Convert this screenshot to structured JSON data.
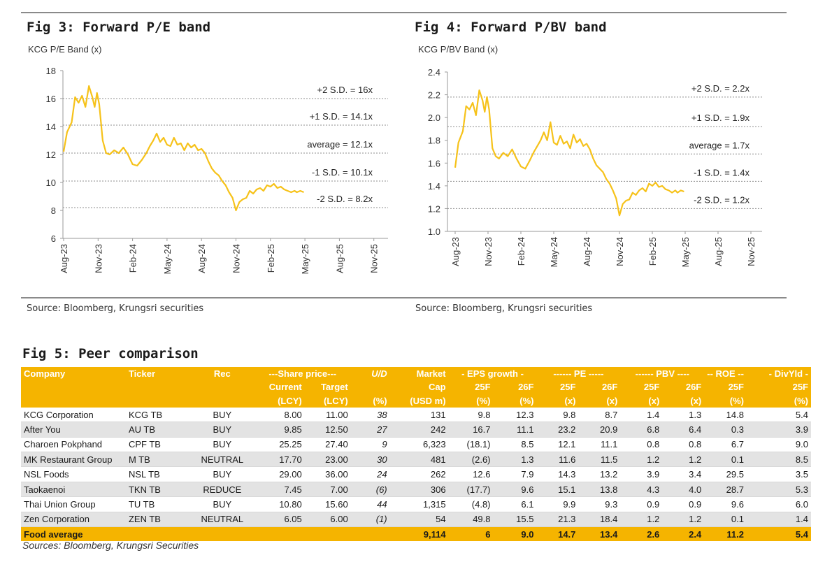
{
  "fig3": {
    "title": "Fig 3: Forward P/E band",
    "subtitle": "KCG P/E  Band (x)",
    "source": "Source: Bloomberg, Krungsri securities"
  },
  "fig4": {
    "title": "Fig 4: Forward P/BV band",
    "subtitle": "KCG P/BV Band (x)",
    "source": "Source: Bloomberg, Krungsri securities"
  },
  "fig5": {
    "title": "Fig 5: Peer comparison",
    "footnote": "Sources: Bloomberg, Krungsri Securities"
  },
  "colors": {
    "accent": "#f5b400",
    "line": "#f6c21a",
    "band": "#8c8c8c"
  },
  "chart_data": [
    {
      "type": "line",
      "title": "Fig 3: Forward P/E band",
      "ylabel": "KCG P/E  Band (x)",
      "ylim": [
        6,
        18
      ],
      "yticks": [
        6,
        8,
        10,
        12,
        14,
        16,
        18
      ],
      "x_ticks": [
        "Aug-23",
        "Nov-23",
        "Feb-24",
        "May-24",
        "Aug-24",
        "Nov-24",
        "Feb-25",
        "May-25",
        "Aug-25",
        "Nov-25"
      ],
      "x_range_months": [
        0,
        27
      ],
      "series": [
        {
          "name": "KCG P/E",
          "x": [
            0,
            0.3,
            0.7,
            1.0,
            1.3,
            1.6,
            1.9,
            2.2,
            2.5,
            2.7,
            2.9,
            3.1,
            3.4,
            3.7,
            4.0,
            4.4,
            4.8,
            5.2,
            5.6,
            6.0,
            6.4,
            6.8,
            7.2,
            7.5,
            7.8,
            8.1,
            8.4,
            8.7,
            9.0,
            9.3,
            9.6,
            9.9,
            10.2,
            10.5,
            10.8,
            11.1,
            11.4,
            11.7,
            12.0,
            12.3,
            12.6,
            12.9,
            13.2,
            13.5,
            13.8,
            14.1,
            14.4,
            14.7,
            15.0,
            15.3,
            15.6,
            15.9,
            16.2,
            16.5,
            16.8,
            17.1,
            17.4,
            17.7,
            18.0,
            18.3,
            18.6,
            18.9,
            19.2,
            19.5,
            19.8,
            20.1,
            20.3,
            20.6,
            20.9
          ],
          "values": [
            12.2,
            13.6,
            14.3,
            16.1,
            15.7,
            16.2,
            15.4,
            16.9,
            16.1,
            15.4,
            16.4,
            15.6,
            13.0,
            12.1,
            12.0,
            12.3,
            12.1,
            12.5,
            12.0,
            11.3,
            11.2,
            11.6,
            12.1,
            12.6,
            13.0,
            13.5,
            12.9,
            13.2,
            12.7,
            12.6,
            13.2,
            12.7,
            12.8,
            12.3,
            12.8,
            12.5,
            12.7,
            12.3,
            12.4,
            12.1,
            11.5,
            11.0,
            10.7,
            10.5,
            10.1,
            9.8,
            9.3,
            8.9,
            8.0,
            8.6,
            8.8,
            8.9,
            9.4,
            9.2,
            9.5,
            9.6,
            9.4,
            9.8,
            9.7,
            9.9,
            9.6,
            9.7,
            9.5,
            9.4,
            9.3,
            9.4,
            9.3,
            9.4,
            9.3
          ]
        }
      ],
      "bands": [
        {
          "label": "+2 S.D. = 16x",
          "value": 16.0
        },
        {
          "label": "+1 S.D. = 14.1x",
          "value": 14.1
        },
        {
          "label": "average = 12.1x",
          "value": 12.1
        },
        {
          "label": "-1 S.D. = 10.1x",
          "value": 10.1
        },
        {
          "label": "-2 S.D. = 8.2x",
          "value": 8.2
        }
      ]
    },
    {
      "type": "line",
      "title": "Fig 4: Forward P/BV band",
      "ylabel": "KCG P/BV Band (x)",
      "ylim": [
        1.0,
        2.4
      ],
      "yticks": [
        1.0,
        1.2,
        1.4,
        1.6,
        1.8,
        2.0,
        2.2,
        2.4
      ],
      "x_ticks": [
        "Aug-23",
        "Nov-23",
        "Feb-24",
        "May-24",
        "Aug-24",
        "Nov-24",
        "Feb-25",
        "May-25",
        "Aug-25",
        "Nov-25"
      ],
      "x_range_months": [
        0,
        27
      ],
      "series": [
        {
          "name": "KCG P/BV",
          "x": [
            0,
            0.3,
            0.7,
            1.0,
            1.3,
            1.6,
            1.9,
            2.2,
            2.5,
            2.7,
            2.9,
            3.1,
            3.4,
            3.7,
            4.0,
            4.4,
            4.8,
            5.2,
            5.6,
            6.0,
            6.4,
            6.8,
            7.2,
            7.5,
            7.8,
            8.1,
            8.4,
            8.7,
            9.0,
            9.3,
            9.6,
            9.9,
            10.2,
            10.5,
            10.8,
            11.1,
            11.4,
            11.7,
            12.0,
            12.3,
            12.6,
            12.9,
            13.2,
            13.5,
            13.8,
            14.1,
            14.4,
            14.7,
            15.0,
            15.3,
            15.6,
            15.9,
            16.2,
            16.5,
            16.8,
            17.1,
            17.4,
            17.7,
            18.0,
            18.3,
            18.6,
            18.9,
            19.2,
            19.5,
            19.8,
            20.1,
            20.3,
            20.6,
            20.9
          ],
          "values": [
            1.56,
            1.78,
            1.88,
            2.1,
            2.07,
            2.13,
            2.02,
            2.24,
            2.15,
            2.05,
            2.18,
            2.07,
            1.73,
            1.66,
            1.64,
            1.69,
            1.66,
            1.72,
            1.64,
            1.57,
            1.55,
            1.62,
            1.7,
            1.75,
            1.8,
            1.87,
            1.8,
            1.96,
            1.78,
            1.76,
            1.84,
            1.77,
            1.79,
            1.73,
            1.85,
            1.78,
            1.81,
            1.75,
            1.77,
            1.72,
            1.64,
            1.58,
            1.55,
            1.52,
            1.46,
            1.42,
            1.36,
            1.29,
            1.14,
            1.24,
            1.27,
            1.28,
            1.34,
            1.32,
            1.36,
            1.38,
            1.35,
            1.42,
            1.4,
            1.43,
            1.39,
            1.4,
            1.37,
            1.36,
            1.34,
            1.36,
            1.34,
            1.36,
            1.35
          ]
        }
      ],
      "bands": [
        {
          "label": "+2 S.D. = 2.2x",
          "value": 2.18
        },
        {
          "label": "+1 S.D. = 1.9x",
          "value": 1.92
        },
        {
          "label": "average = 1.7x",
          "value": 1.68
        },
        {
          "label": "-1 S.D. = 1.4x",
          "value": 1.44
        },
        {
          "label": "-2 S.D. = 1.2x",
          "value": 1.2
        }
      ]
    },
    {
      "type": "table",
      "title": "Fig 5: Peer comparison",
      "header_row1": [
        "Company",
        "Ticker",
        "Rec",
        "---Share price---",
        "U/D",
        "Market",
        "- EPS growth -",
        "------ PE -----",
        "------ PBV ----",
        "-- ROE --",
        "- DivYld -"
      ],
      "header_row2": [
        "Current",
        "Target",
        "Cap",
        "25F",
        "26F",
        "25F",
        "26F",
        "25F",
        "26F",
        "25F",
        "25F"
      ],
      "header_row3": [
        "(LCY)",
        "(LCY)",
        "(%)",
        "(USD m)",
        "(%)",
        "(%)",
        "(x)",
        "(x)",
        "(x)",
        "(x)",
        "(%)",
        "(%)"
      ],
      "rows": [
        [
          "KCG Corporation",
          "KCG TB",
          "BUY",
          "8.00",
          "11.00",
          "38",
          "131",
          "9.8",
          "12.3",
          "9.8",
          "8.7",
          "1.4",
          "1.3",
          "14.8",
          "5.4"
        ],
        [
          "After You",
          "AU TB",
          "BUY",
          "9.85",
          "12.50",
          "27",
          "242",
          "16.7",
          "11.1",
          "23.2",
          "20.9",
          "6.8",
          "6.4",
          "0.3",
          "3.9"
        ],
        [
          "Charoen Pokphand",
          "CPF TB",
          "BUY",
          "25.25",
          "27.40",
          "9",
          "6,323",
          "(18.1)",
          "8.5",
          "12.1",
          "11.1",
          "0.8",
          "0.8",
          "6.7",
          "9.0"
        ],
        [
          "MK Restaurant Group",
          "M TB",
          "NEUTRAL",
          "17.70",
          "23.00",
          "30",
          "481",
          "(2.6)",
          "1.3",
          "11.6",
          "11.5",
          "1.2",
          "1.2",
          "0.1",
          "8.5"
        ],
        [
          "NSL Foods",
          "NSL TB",
          "BUY",
          "29.00",
          "36.00",
          "24",
          "262",
          "12.6",
          "7.9",
          "14.3",
          "13.2",
          "3.9",
          "3.4",
          "29.5",
          "3.5"
        ],
        [
          "Taokaenoi",
          "TKN TB",
          "REDUCE",
          "7.45",
          "7.00",
          "(6)",
          "306",
          "(17.7)",
          "9.6",
          "15.1",
          "13.8",
          "4.3",
          "4.0",
          "28.7",
          "5.3"
        ],
        [
          "Thai Union Group",
          "TU TB",
          "BUY",
          "10.80",
          "15.60",
          "44",
          "1,315",
          "(4.8)",
          "6.1",
          "9.9",
          "9.3",
          "0.9",
          "0.9",
          "9.6",
          "6.0"
        ],
        [
          "Zen Corporation",
          "ZEN TB",
          "NEUTRAL",
          "6.05",
          "6.00",
          "(1)",
          "54",
          "49.8",
          "15.5",
          "21.3",
          "18.4",
          "1.2",
          "1.2",
          "0.1",
          "1.4"
        ]
      ],
      "average_row": [
        "Food average",
        "9,114",
        "6",
        "9.0",
        "14.7",
        "13.4",
        "2.6",
        "2.4",
        "11.2",
        "5.4"
      ]
    }
  ]
}
